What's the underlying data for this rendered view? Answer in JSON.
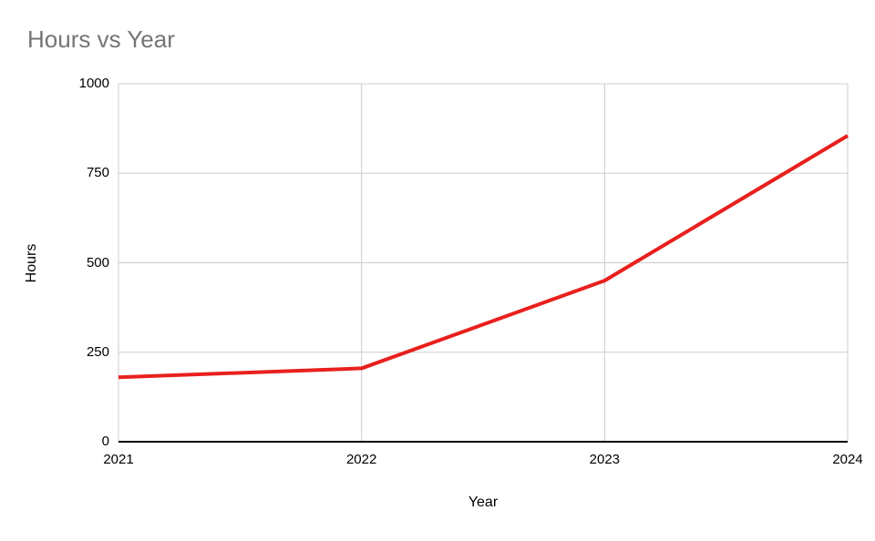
{
  "chart_data": {
    "type": "line",
    "title": "Hours vs Year",
    "xlabel": "Year",
    "ylabel": "Hours",
    "categories": [
      "2021",
      "2022",
      "2023",
      "2024"
    ],
    "series": [
      {
        "name": "Hours",
        "color": "#e8201d",
        "values": [
          180,
          205,
          450,
          855
        ]
      }
    ],
    "ylim": [
      0,
      1000
    ],
    "yticks": [
      0,
      250,
      500,
      750,
      1000
    ],
    "grid": true,
    "legend": "none",
    "colors": {
      "title": "#757575",
      "axis_text": "#000000",
      "gridline": "#cccccc",
      "axis_line": "#000000",
      "background": "#ffffff"
    }
  }
}
